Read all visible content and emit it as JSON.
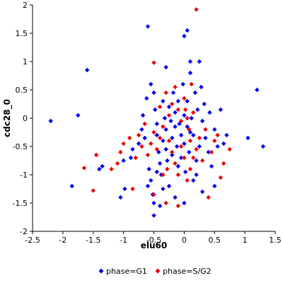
{
  "chart_data": {
    "type": "scatter",
    "xlabel": "elu60",
    "ylabel": "cdc28_0",
    "xlim": [
      -2.5,
      1.5
    ],
    "ylim": [
      -2,
      2
    ],
    "x_ticks": [
      -2.5,
      -2,
      -1.5,
      -1,
      -0.5,
      0,
      0.5,
      1,
      1.5
    ],
    "y_ticks": [
      -2,
      -1.5,
      -1,
      -0.5,
      0,
      0.5,
      1,
      1.5,
      2
    ],
    "x_tick_labels": [
      "-2.5",
      "-2",
      "-1.5",
      "-1",
      "-0.5",
      "0",
      "0.5",
      "1",
      "1.5"
    ],
    "y_tick_labels": [
      "-2",
      "-1.5",
      "-1",
      "-0.5",
      "0",
      "0.5",
      "1",
      "1.5",
      "2"
    ],
    "grid": false,
    "legend_position": "bottom",
    "marker": "diamond",
    "series": [
      {
        "name": "phase=G1",
        "color": "#0000ee",
        "points": [
          [
            -2.2,
            -0.05
          ],
          [
            -1.75,
            0.05
          ],
          [
            -1.6,
            0.85
          ],
          [
            -1.4,
            -0.9
          ],
          [
            -1.85,
            -1.2
          ],
          [
            -1.35,
            -0.85
          ],
          [
            -1.0,
            -0.75
          ],
          [
            -0.98,
            -1.25
          ],
          [
            -1.05,
            -1.4
          ],
          [
            -0.88,
            -0.7
          ],
          [
            -0.85,
            -0.55
          ],
          [
            -0.75,
            -0.45
          ],
          [
            -0.7,
            -0.2
          ],
          [
            -0.68,
            0.05
          ],
          [
            -0.62,
            0.35
          ],
          [
            -0.58,
            -0.9
          ],
          [
            -0.55,
            -1.1
          ],
          [
            -0.52,
            -1.35
          ],
          [
            -0.5,
            -1.5
          ],
          [
            -0.6,
            -1.2
          ],
          [
            -0.55,
            0.6
          ],
          [
            -0.5,
            0.45
          ],
          [
            -0.48,
            0.15
          ],
          [
            -0.45,
            -0.1
          ],
          [
            -0.45,
            -0.3
          ],
          [
            -0.42,
            -0.6
          ],
          [
            -0.4,
            -0.8
          ],
          [
            -0.38,
            -1.0
          ],
          [
            -0.35,
            0.3
          ],
          [
            -0.35,
            -0.4
          ],
          [
            -0.32,
            0.0
          ],
          [
            -0.3,
            -0.2
          ],
          [
            -0.3,
            -0.55
          ],
          [
            -0.28,
            -0.75
          ],
          [
            -0.25,
            0.2
          ],
          [
            -0.25,
            -1.2
          ],
          [
            -0.22,
            -0.05
          ],
          [
            -0.2,
            -0.35
          ],
          [
            -0.2,
            -0.65
          ],
          [
            -0.18,
            0.45
          ],
          [
            -0.15,
            0.1
          ],
          [
            -0.15,
            -0.15
          ],
          [
            -0.12,
            -0.5
          ],
          [
            -0.1,
            -0.85
          ],
          [
            -0.1,
            0.3
          ],
          [
            -0.08,
            -0.1
          ],
          [
            -0.05,
            -0.3
          ],
          [
            -0.05,
            -0.7
          ],
          [
            -0.02,
            0.6
          ],
          [
            0.0,
            0.05
          ],
          [
            0.0,
            -0.45
          ],
          [
            0.02,
            -0.95
          ],
          [
            0.05,
            0.3
          ],
          [
            0.05,
            -0.15
          ],
          [
            0.08,
            -0.6
          ],
          [
            0.1,
            0.8
          ],
          [
            0.1,
            1.0
          ],
          [
            0.12,
            0.0
          ],
          [
            0.15,
            -0.3
          ],
          [
            0.15,
            -1.1
          ],
          [
            0.18,
            0.45
          ],
          [
            0.2,
            -0.75
          ],
          [
            0.22,
            0.15
          ],
          [
            0.25,
            -0.5
          ],
          [
            0.28,
            0.55
          ],
          [
            0.3,
            -0.05
          ],
          [
            0.3,
            -1.3
          ],
          [
            0.33,
            0.25
          ],
          [
            0.35,
            -0.35
          ],
          [
            0.4,
            -0.6
          ],
          [
            0.42,
            0.1
          ],
          [
            0.45,
            -0.85
          ],
          [
            0.5,
            -0.2
          ],
          [
            0.5,
            -1.2
          ],
          [
            0.55,
            -0.5
          ],
          [
            0.6,
            0.15
          ],
          [
            0.65,
            -0.45
          ],
          [
            0.7,
            -0.3
          ],
          [
            0.0,
            1.45
          ],
          [
            0.05,
            1.55
          ],
          [
            -0.6,
            1.62
          ],
          [
            -0.5,
            -1.72
          ],
          [
            -0.4,
            -1.55
          ],
          [
            1.05,
            -0.35
          ],
          [
            1.2,
            0.5
          ],
          [
            1.3,
            -0.5
          ],
          [
            -0.3,
            0.9
          ],
          [
            0.25,
            1.0
          ],
          [
            0.2,
            -1.0
          ],
          [
            -0.65,
            -0.35
          ],
          [
            -0.45,
            -0.95
          ],
          [
            -0.35,
            -1.25
          ],
          [
            -0.15,
            -1.4
          ],
          [
            0.0,
            -1.5
          ],
          [
            0.1,
            -0.25
          ]
        ]
      },
      {
        "name": "phase=S/G2",
        "color": "#ee0000",
        "points": [
          [
            0.2,
            1.92
          ],
          [
            -0.5,
            0.98
          ],
          [
            -0.3,
            0.45
          ],
          [
            -0.2,
            0.25
          ],
          [
            -0.15,
            0.55
          ],
          [
            -0.1,
            0.15
          ],
          [
            -0.05,
            -0.05
          ],
          [
            0.0,
            0.35
          ],
          [
            0.05,
            0.0
          ],
          [
            0.08,
            -0.2
          ],
          [
            0.1,
            -0.4
          ],
          [
            0.12,
            0.6
          ],
          [
            0.15,
            0.1
          ],
          [
            -0.35,
            -0.15
          ],
          [
            -0.4,
            -0.35
          ],
          [
            -0.45,
            -0.55
          ],
          [
            -0.5,
            -0.25
          ],
          [
            -0.55,
            -0.45
          ],
          [
            -0.6,
            -0.65
          ],
          [
            -0.65,
            -0.1
          ],
          [
            -0.7,
            -0.5
          ],
          [
            -0.75,
            -0.3
          ],
          [
            -0.8,
            -0.7
          ],
          [
            -0.9,
            -0.35
          ],
          [
            -1.0,
            -0.45
          ],
          [
            -1.05,
            -0.6
          ],
          [
            -1.1,
            -0.8
          ],
          [
            -1.2,
            -0.9
          ],
          [
            -1.45,
            -0.65
          ],
          [
            -1.65,
            -0.88
          ],
          [
            -1.5,
            -1.28
          ],
          [
            -0.85,
            -1.25
          ],
          [
            -0.5,
            -1.35
          ],
          [
            -0.3,
            -1.5
          ],
          [
            -0.1,
            -1.55
          ],
          [
            0.05,
            -1.1
          ],
          [
            0.1,
            -0.9
          ],
          [
            0.15,
            -0.7
          ],
          [
            0.2,
            -0.55
          ],
          [
            0.25,
            -0.35
          ],
          [
            0.3,
            -0.75
          ],
          [
            0.35,
            -0.2
          ],
          [
            0.4,
            -1.4
          ],
          [
            0.45,
            -0.6
          ],
          [
            0.5,
            -0.4
          ],
          [
            0.55,
            -0.3
          ],
          [
            0.6,
            -1.05
          ],
          [
            0.65,
            -0.8
          ],
          [
            0.75,
            -0.55
          ],
          [
            -0.25,
            0.05
          ],
          [
            -0.2,
            -0.6
          ],
          [
            -0.15,
            -0.8
          ],
          [
            -0.1,
            -1.0
          ],
          [
            -0.05,
            -0.5
          ],
          [
            0.0,
            -0.7
          ],
          [
            0.02,
            0.15
          ],
          [
            -0.28,
            -0.9
          ],
          [
            -0.35,
            -1.0
          ],
          [
            -0.4,
            0.2
          ],
          [
            -0.25,
            -0.4
          ]
        ]
      }
    ]
  }
}
